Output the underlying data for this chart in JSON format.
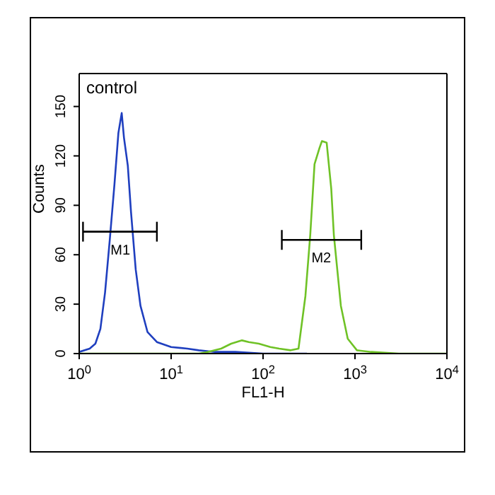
{
  "chart_data": {
    "type": "line",
    "xlabel": "FL1-H",
    "ylabel": "Counts",
    "log": "x",
    "xlim": [
      1,
      10000
    ],
    "ylim": [
      0,
      170
    ],
    "xticks": [
      {
        "value": 1,
        "label": "10$^{0}$"
      },
      {
        "value": 10,
        "label": "10$^{1}$"
      },
      {
        "value": 100,
        "label": "10$^{2}$"
      },
      {
        "value": 1000,
        "label": "10$^{3}$"
      },
      {
        "value": 10000,
        "label": "10$^{4}$"
      }
    ],
    "yticks": [
      0,
      30,
      60,
      90,
      120,
      150
    ],
    "grid": false,
    "legend": false,
    "annotations": [
      "control",
      {
        "text": "M1",
        "x": 2.8,
        "y": 74
      },
      {
        "text": "M2",
        "x": 430,
        "y": 69
      }
    ],
    "series": [
      {
        "color": "#1f3fbf",
        "marker": "none",
        "x": [
          1,
          1.3,
          1.5,
          1.7,
          1.91,
          2.15,
          2.42,
          2.67,
          2.9,
          3.07,
          3.38,
          3.66,
          4.12,
          4.64,
          5.54,
          7,
          10,
          15,
          20,
          30,
          50,
          100,
          300
        ],
        "values": [
          1,
          3,
          6,
          15,
          37,
          69,
          103,
          134,
          146,
          131,
          114,
          86,
          51,
          29,
          13,
          7,
          4,
          3,
          2,
          1,
          1,
          0,
          0
        ]
      },
      {
        "color": "#6fc226",
        "marker": "none",
        "x": [
          1,
          10,
          20,
          25,
          35,
          45,
          59,
          70,
          90,
          120,
          150,
          200,
          243,
          289,
          326,
          363,
          412,
          437,
          492,
          552,
          589,
          702,
          834,
          1050,
          1500,
          3000,
          10000
        ],
        "values": [
          0,
          0,
          0,
          1,
          3,
          6,
          8,
          7,
          6,
          4,
          3,
          2,
          3,
          35,
          72,
          115,
          125,
          129,
          128,
          100,
          72,
          29,
          9,
          2,
          1,
          0,
          0
        ]
      },
      {
        "color": "#000000",
        "x": [
          1.1,
          7
        ],
        "values": [
          74,
          74
        ]
      },
      {
        "color": "#000000",
        "x": [
          160,
          1170
        ],
        "values": [
          69,
          69
        ]
      }
    ]
  }
}
